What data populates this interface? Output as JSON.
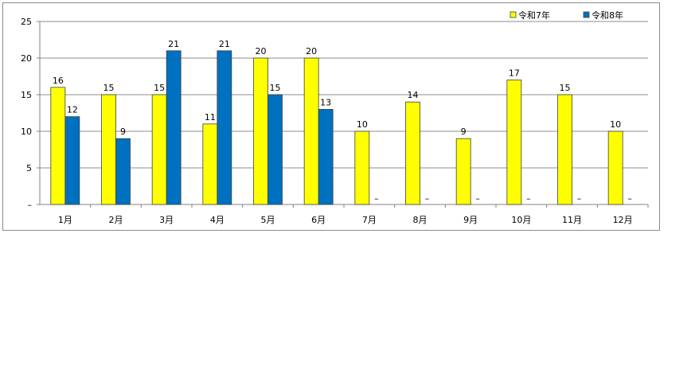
{
  "chart_data": {
    "type": "bar",
    "categories": [
      "1月",
      "2月",
      "3月",
      "4月",
      "5月",
      "6月",
      "7月",
      "8月",
      "9月",
      "10月",
      "11月",
      "12月"
    ],
    "series": [
      {
        "name": "令和7年",
        "color": "#FFFF00",
        "values": [
          16,
          15,
          15,
          11,
          20,
          20,
          10,
          14,
          9,
          17,
          15,
          10
        ],
        "labels": [
          "16",
          "15",
          "15",
          "11",
          "20",
          "20",
          "10",
          "14",
          "9",
          "17",
          "15",
          "10"
        ]
      },
      {
        "name": "令和8年",
        "color": "#0070C0",
        "values": [
          12,
          9,
          21,
          21,
          15,
          13,
          null,
          null,
          null,
          null,
          null,
          null
        ],
        "labels": [
          "12",
          "9",
          "21",
          "21",
          "15",
          "13",
          "–",
          "–",
          "–",
          "–",
          "–",
          "–"
        ]
      }
    ],
    "y_ticks": [
      "–",
      "5",
      "10",
      "15",
      "20",
      "25"
    ],
    "ylim": [
      0,
      25
    ],
    "grid": true,
    "legend_position": "top-right",
    "title": "",
    "xlabel": "",
    "ylabel": ""
  }
}
